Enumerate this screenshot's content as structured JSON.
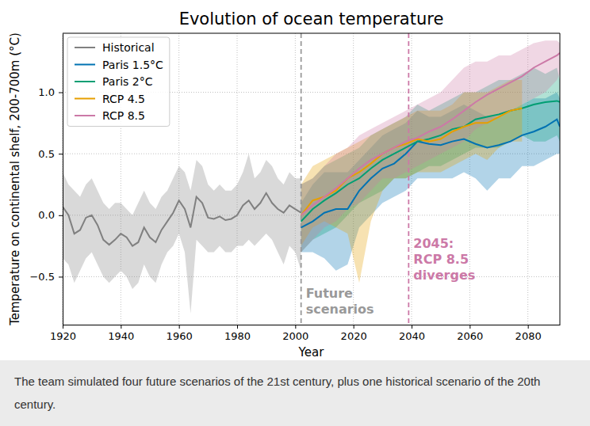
{
  "chart_data": {
    "type": "line",
    "title": "Evolution of ocean temperature",
    "xlabel": "Year",
    "ylabel": "Temperature on continental shelf, 200-700m (°C)",
    "caption": "The team simulated four future scenarios of the 21st century, plus one historical scenario of the 20th century.",
    "xlim": [
      1920,
      2091
    ],
    "ylim": [
      -0.89,
      1.48
    ],
    "xticks": [
      1920,
      1940,
      1960,
      1980,
      2000,
      2020,
      2040,
      2060,
      2080
    ],
    "yticks": [
      {
        "value": -0.5,
        "label": "−0.5"
      },
      {
        "value": 0,
        "label": "0.0"
      },
      0.5,
      {
        "value": 1,
        "label": "1.0"
      }
    ],
    "grid": true,
    "legend": "upper left",
    "series": [
      {
        "name": "Historical",
        "color": "#808080",
        "x": [
          1920,
          1922,
          1924,
          1926,
          1928,
          1930,
          1932,
          1934,
          1936,
          1938,
          1940,
          1942,
          1944,
          1946,
          1948,
          1950,
          1952,
          1954,
          1956,
          1958,
          1960,
          1962,
          1964,
          1966,
          1968,
          1970,
          1972,
          1974,
          1976,
          1978,
          1980,
          1982,
          1984,
          1986,
          1988,
          1990,
          1992,
          1994,
          1996,
          1998,
          2000,
          2002
        ],
        "values": [
          0.07,
          0.0,
          -0.15,
          -0.12,
          -0.02,
          0.0,
          -0.08,
          -0.2,
          -0.24,
          -0.2,
          -0.15,
          -0.18,
          -0.25,
          -0.22,
          -0.1,
          -0.18,
          -0.22,
          -0.12,
          -0.05,
          0.02,
          0.12,
          0.05,
          -0.1,
          0.15,
          0.1,
          -0.02,
          -0.03,
          -0.01,
          -0.04,
          -0.03,
          0.0,
          0.08,
          0.12,
          0.05,
          0.1,
          0.18,
          0.1,
          0.05,
          0.02,
          0.08,
          0.05,
          0.02
        ],
        "lower": [
          -0.35,
          -0.4,
          -0.55,
          -0.45,
          -0.35,
          -0.3,
          -0.4,
          -0.5,
          -0.55,
          -0.5,
          -0.45,
          -0.5,
          -0.6,
          -0.55,
          -0.4,
          -0.5,
          -0.55,
          -0.4,
          -0.3,
          -0.25,
          -0.15,
          -0.3,
          -0.8,
          -0.2,
          -0.25,
          -0.3,
          -0.3,
          -0.25,
          -0.3,
          -0.3,
          -0.25,
          -0.25,
          -0.2,
          -0.25,
          -0.2,
          -0.15,
          -0.2,
          -0.3,
          -0.4,
          -0.25,
          -0.3,
          -0.45
        ],
        "upper": [
          0.35,
          0.25,
          0.2,
          0.15,
          0.25,
          0.3,
          0.2,
          0.1,
          0.05,
          0.1,
          0.1,
          0.05,
          0.0,
          0.1,
          0.2,
          0.1,
          0.05,
          0.15,
          0.2,
          0.3,
          0.4,
          0.35,
          0.2,
          0.45,
          0.4,
          0.25,
          0.2,
          0.25,
          0.2,
          0.2,
          0.25,
          0.35,
          0.5,
          0.3,
          0.35,
          0.45,
          0.4,
          0.3,
          0.25,
          0.35,
          0.3,
          0.3
        ]
      },
      {
        "name": "Paris 1.5°C",
        "color": "#0072b2",
        "x": [
          2002,
          2006,
          2010,
          2014,
          2018,
          2022,
          2026,
          2030,
          2034,
          2038,
          2042,
          2046,
          2050,
          2054,
          2058,
          2062,
          2066,
          2070,
          2074,
          2078,
          2082,
          2086,
          2090,
          2091
        ],
        "values": [
          -0.1,
          -0.05,
          0.02,
          0.05,
          0.05,
          0.2,
          0.3,
          0.38,
          0.42,
          0.5,
          0.6,
          0.58,
          0.57,
          0.6,
          0.62,
          0.58,
          0.55,
          0.57,
          0.6,
          0.65,
          0.68,
          0.72,
          0.78,
          0.72
        ],
        "lower": [
          -0.3,
          -0.3,
          -0.35,
          -0.45,
          -0.4,
          -0.1,
          0.0,
          0.1,
          0.15,
          0.2,
          0.3,
          0.3,
          0.3,
          0.3,
          0.35,
          0.3,
          0.2,
          0.3,
          0.3,
          0.4,
          0.4,
          0.45,
          0.5,
          0.5
        ],
        "upper": [
          0.1,
          0.25,
          0.35,
          0.35,
          0.35,
          0.45,
          0.55,
          0.65,
          0.7,
          0.75,
          0.85,
          0.8,
          0.8,
          0.85,
          0.9,
          0.85,
          0.8,
          0.8,
          0.85,
          0.9,
          0.95,
          0.95,
          1.0,
          0.95
        ]
      },
      {
        "name": "Paris 2°C",
        "color": "#009e73",
        "x": [
          2002,
          2006,
          2010,
          2014,
          2018,
          2022,
          2026,
          2030,
          2034,
          2038,
          2042,
          2046,
          2050,
          2054,
          2058,
          2062,
          2066,
          2070,
          2074,
          2078,
          2082,
          2086,
          2090,
          2091
        ],
        "values": [
          -0.05,
          0.05,
          0.12,
          0.18,
          0.25,
          0.3,
          0.38,
          0.45,
          0.5,
          0.55,
          0.6,
          0.62,
          0.65,
          0.7,
          0.72,
          0.78,
          0.8,
          0.82,
          0.85,
          0.87,
          0.9,
          0.92,
          0.93,
          0.92
        ],
        "lower": [
          -0.3,
          -0.2,
          -0.15,
          -0.1,
          0.0,
          0.1,
          0.15,
          0.2,
          0.3,
          0.3,
          0.35,
          0.4,
          0.4,
          0.45,
          0.5,
          0.55,
          0.55,
          0.55,
          0.6,
          0.65,
          0.6,
          0.6,
          0.65,
          0.6
        ],
        "upper": [
          0.25,
          0.3,
          0.4,
          0.45,
          0.5,
          0.55,
          0.65,
          0.7,
          0.75,
          0.8,
          0.9,
          0.85,
          0.9,
          0.95,
          1.0,
          1.0,
          1.05,
          1.1,
          1.1,
          1.15,
          1.2,
          1.15,
          1.2,
          1.1
        ]
      },
      {
        "name": "RCP 4.5",
        "color": "#e69f00",
        "x": [
          2002,
          2006,
          2010,
          2014,
          2018,
          2022,
          2026,
          2030,
          2034,
          2038,
          2042,
          2046,
          2050,
          2054,
          2058,
          2062,
          2066,
          2070,
          2074,
          2078
        ],
        "values": [
          0.0,
          0.12,
          0.15,
          0.2,
          0.3,
          0.35,
          0.42,
          0.5,
          0.55,
          0.58,
          0.62,
          0.6,
          0.62,
          0.68,
          0.72,
          0.75,
          0.75,
          0.8,
          0.85,
          0.87
        ],
        "lower": [
          -0.25,
          -0.1,
          -0.05,
          -0.1,
          -0.15,
          -0.55,
          -0.05,
          0.2,
          0.3,
          0.3,
          0.35,
          0.35,
          0.35,
          0.4,
          0.45,
          0.5,
          0.45,
          0.55,
          0.6,
          0.6
        ],
        "upper": [
          0.25,
          0.4,
          0.45,
          0.5,
          0.55,
          0.6,
          0.65,
          0.7,
          0.75,
          0.8,
          0.85,
          0.85,
          0.85,
          0.9,
          1.0,
          1.0,
          1.0,
          1.05,
          1.1,
          1.1
        ]
      },
      {
        "name": "RCP 8.5",
        "color": "#cc79a7",
        "x": [
          2002,
          2006,
          2010,
          2014,
          2018,
          2022,
          2026,
          2030,
          2034,
          2038,
          2042,
          2046,
          2050,
          2054,
          2058,
          2062,
          2066,
          2070,
          2074,
          2078,
          2082,
          2086,
          2090,
          2091
        ],
        "values": [
          0.0,
          0.08,
          0.15,
          0.22,
          0.3,
          0.38,
          0.45,
          0.5,
          0.55,
          0.6,
          0.63,
          0.68,
          0.72,
          0.78,
          0.85,
          0.92,
          0.98,
          1.03,
          1.08,
          1.13,
          1.2,
          1.25,
          1.3,
          1.32
        ],
        "lower": [
          -0.3,
          -0.2,
          -0.1,
          -0.05,
          0.05,
          0.1,
          0.2,
          0.3,
          0.3,
          0.35,
          0.4,
          0.45,
          0.5,
          0.55,
          0.6,
          0.7,
          0.75,
          0.8,
          0.85,
          0.9,
          0.95,
          1.0,
          1.1,
          1.15
        ],
        "upper": [
          0.25,
          0.3,
          0.4,
          0.5,
          0.55,
          0.65,
          0.7,
          0.75,
          0.8,
          0.85,
          0.9,
          0.95,
          1.0,
          1.1,
          1.2,
          1.25,
          1.25,
          1.3,
          1.3,
          1.35,
          1.4,
          1.42,
          1.42,
          1.4
        ]
      }
    ],
    "annotations": [
      {
        "x": 2002,
        "text": [
          "Future",
          "scenarios"
        ],
        "color": "#999999"
      },
      {
        "x": 2039,
        "text": [
          "2045:",
          "RCP 8.5",
          "diverges"
        ],
        "color": "#cc79a7"
      }
    ]
  }
}
